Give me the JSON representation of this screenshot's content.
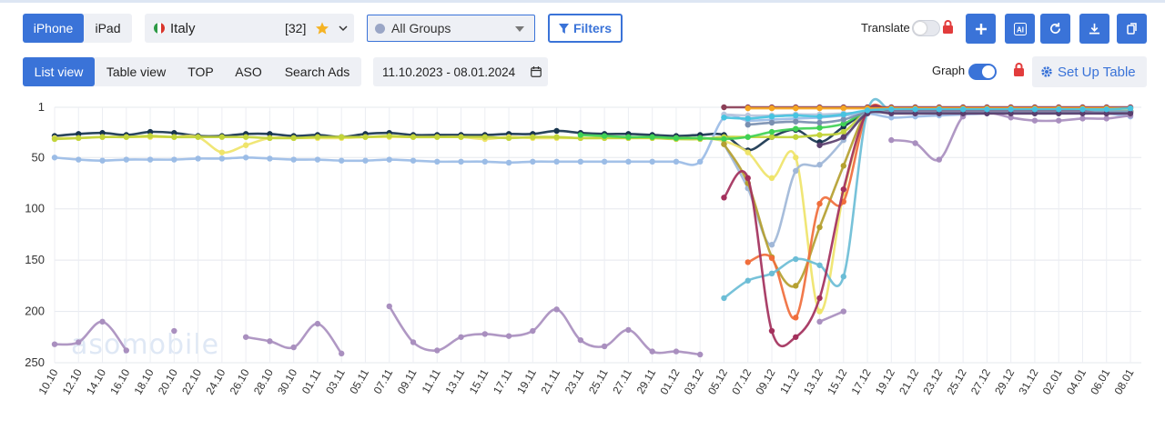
{
  "toolbar": {
    "device_tabs": [
      "iPhone",
      "iPad"
    ],
    "country": {
      "name": "Italy",
      "count": "[32]"
    },
    "groups": {
      "label": "All Groups"
    },
    "filters_label": "Filters",
    "translate_label": "Translate",
    "translate_on": false
  },
  "view_tabs": [
    "List view",
    "Table view",
    "TOP",
    "ASO",
    "Search Ads"
  ],
  "date_range": "11.10.2023 - 08.01.2024",
  "graph_label": "Graph",
  "graph_on": true,
  "setup_label": "Set Up Table",
  "watermark": "asomobile",
  "colors": {
    "accent": "#3a73d8",
    "lock": "#e23c3c",
    "star": "#f5b324"
  },
  "icons": [
    "plus-icon",
    "ai-icon",
    "refresh-icon",
    "download-icon",
    "copy-icon",
    "lock-icon",
    "gear-icon",
    "calendar-icon",
    "filter-icon",
    "star-icon",
    "chevron-down-icon"
  ],
  "chart_data": {
    "type": "line",
    "ylim": [
      1,
      250
    ],
    "y_inverted": true,
    "yticks": [
      1,
      50,
      100,
      150,
      200,
      250
    ],
    "x": [
      "10.10",
      "12.10",
      "14.10",
      "16.10",
      "18.10",
      "20.10",
      "22.10",
      "24.10",
      "26.10",
      "28.10",
      "30.10",
      "01.11",
      "03.11",
      "05.11",
      "07.11",
      "09.11",
      "11.11",
      "13.11",
      "15.11",
      "17.11",
      "19.11",
      "21.11",
      "23.11",
      "25.11",
      "27.11",
      "29.11",
      "01.12",
      "03.12",
      "05.12",
      "07.12",
      "09.12",
      "11.12",
      "13.12",
      "15.12",
      "17.12",
      "19.12",
      "21.12",
      "23.12",
      "25.12",
      "27.12",
      "29.12",
      "31.12",
      "02.01",
      "04.01",
      "06.01",
      "08.01"
    ],
    "series": [
      {
        "color": "#17344e",
        "values": [
          29,
          27,
          26,
          28,
          25,
          26,
          29,
          29,
          27,
          27,
          29,
          28,
          30,
          27,
          26,
          28,
          28,
          28,
          28,
          27,
          27,
          24,
          26,
          27,
          27,
          28,
          29,
          28,
          28,
          43,
          30,
          23,
          35,
          20,
          6,
          5,
          5,
          5,
          5,
          5,
          5,
          5,
          5,
          5,
          5,
          5
        ]
      },
      {
        "color": "#9bbce6",
        "values": [
          50,
          52,
          53,
          52,
          52,
          52,
          51,
          51,
          50,
          51,
          52,
          52,
          53,
          53,
          52,
          53,
          54,
          54,
          54,
          55,
          54,
          54,
          54,
          54,
          54,
          54,
          54,
          54,
          11,
          14,
          13,
          12,
          11,
          9,
          7,
          11,
          10,
          9,
          8,
          7,
          7,
          7,
          7,
          7,
          7,
          10
        ]
      },
      {
        "color": "#efe46a",
        "values": [
          31,
          31,
          30,
          30,
          30,
          30,
          30,
          45,
          38,
          31,
          31,
          31,
          31,
          30,
          30,
          30,
          30,
          30,
          32,
          30,
          31,
          31,
          31,
          31,
          31,
          31,
          31,
          31,
          34,
          45,
          70,
          50,
          200,
          85,
          5,
          5,
          4,
          4,
          4,
          4,
          4,
          4,
          4,
          4,
          4,
          4
        ]
      },
      {
        "color": "#c2d43a",
        "values": [
          32,
          31,
          30,
          30,
          29,
          30,
          30,
          30,
          30,
          31,
          31,
          30,
          30,
          30,
          29,
          30,
          30,
          30,
          30,
          31,
          30,
          30,
          31,
          31,
          31,
          31,
          32,
          32,
          30,
          30,
          30,
          30,
          28,
          25,
          5,
          5,
          5,
          5,
          5,
          5,
          5,
          5,
          5,
          5,
          5,
          5
        ]
      },
      {
        "color": "#3fd155",
        "values": [
          null,
          null,
          null,
          null,
          null,
          null,
          null,
          null,
          null,
          null,
          null,
          null,
          null,
          null,
          null,
          null,
          null,
          null,
          null,
          null,
          null,
          null,
          28,
          29,
          30,
          30,
          31,
          31,
          32,
          30,
          25,
          22,
          21,
          17,
          5,
          5,
          5,
          5,
          5,
          5,
          5,
          5,
          5,
          5,
          5,
          5
        ]
      },
      {
        "color": "#a98fbf",
        "values": [
          232,
          230,
          210,
          238,
          null,
          219,
          null,
          null,
          225,
          229,
          235,
          212,
          241,
          null,
          195,
          230,
          238,
          225,
          222,
          224,
          219,
          198,
          228,
          234,
          218,
          239,
          239,
          242,
          null,
          null,
          null,
          null,
          210,
          200,
          null,
          33,
          36,
          52,
          10,
          6,
          11,
          14,
          14,
          12,
          12,
          9
        ]
      },
      {
        "color": "#a0b7d8",
        "values": [
          null,
          null,
          null,
          null,
          null,
          null,
          null,
          null,
          null,
          null,
          null,
          null,
          null,
          null,
          null,
          null,
          null,
          null,
          null,
          null,
          null,
          null,
          null,
          null,
          null,
          null,
          null,
          null,
          37,
          80,
          135,
          63,
          57,
          33,
          5,
          5,
          5,
          5,
          5,
          5,
          5,
          5,
          5,
          5,
          5,
          5
        ]
      },
      {
        "color": "#b5a030",
        "values": [
          null,
          null,
          null,
          null,
          null,
          null,
          null,
          null,
          null,
          null,
          null,
          null,
          null,
          null,
          null,
          null,
          null,
          null,
          null,
          null,
          null,
          null,
          null,
          null,
          null,
          null,
          null,
          null,
          37,
          75,
          147,
          175,
          118,
          58,
          5,
          5,
          5,
          5,
          5,
          5,
          5,
          5,
          5,
          5,
          5,
          5
        ]
      },
      {
        "color": "#f06e3c",
        "values": [
          null,
          null,
          null,
          null,
          null,
          null,
          null,
          null,
          null,
          null,
          null,
          null,
          null,
          null,
          null,
          null,
          null,
          null,
          null,
          null,
          null,
          null,
          null,
          null,
          null,
          null,
          null,
          null,
          null,
          152,
          148,
          206,
          95,
          93,
          5,
          5,
          5,
          5,
          5,
          5,
          5,
          5,
          5,
          5,
          5,
          5
        ]
      },
      {
        "color": "#6bbdd6",
        "values": [
          null,
          null,
          null,
          null,
          null,
          null,
          null,
          null,
          null,
          null,
          null,
          null,
          null,
          null,
          null,
          null,
          null,
          null,
          null,
          null,
          null,
          null,
          null,
          null,
          null,
          null,
          null,
          null,
          187,
          170,
          163,
          149,
          155,
          166,
          5,
          5,
          5,
          5,
          5,
          5,
          5,
          5,
          5,
          5,
          5,
          5
        ]
      },
      {
        "color": "#a3305c",
        "values": [
          null,
          null,
          null,
          null,
          null,
          null,
          null,
          null,
          null,
          null,
          null,
          null,
          null,
          null,
          null,
          null,
          null,
          null,
          null,
          null,
          null,
          null,
          null,
          null,
          null,
          null,
          null,
          null,
          89,
          70,
          219,
          225,
          187,
          81,
          5,
          5,
          4,
          4,
          4,
          4,
          4,
          4,
          4,
          5,
          7,
          6
        ]
      },
      {
        "color": "#8b3f57",
        "values": [
          null,
          null,
          null,
          null,
          null,
          null,
          null,
          null,
          null,
          null,
          null,
          null,
          null,
          null,
          null,
          null,
          null,
          null,
          null,
          null,
          null,
          null,
          null,
          null,
          null,
          null,
          null,
          null,
          1,
          1,
          1,
          1,
          1,
          1,
          1,
          1,
          1,
          1,
          1,
          1,
          1,
          1,
          1,
          1,
          1,
          1
        ]
      },
      {
        "color": "#f5a623",
        "values": [
          null,
          null,
          null,
          null,
          null,
          null,
          null,
          null,
          null,
          null,
          null,
          null,
          null,
          null,
          null,
          null,
          null,
          null,
          null,
          null,
          null,
          null,
          null,
          null,
          null,
          null,
          null,
          null,
          null,
          2,
          2,
          2,
          2,
          2,
          2,
          2,
          2,
          2,
          2,
          2,
          2,
          2,
          2,
          2,
          2,
          2
        ]
      },
      {
        "color": "#b8c6de",
        "values": [
          null,
          null,
          null,
          null,
          null,
          null,
          null,
          null,
          null,
          null,
          null,
          null,
          null,
          null,
          null,
          null,
          null,
          null,
          null,
          null,
          null,
          null,
          null,
          null,
          null,
          null,
          null,
          null,
          8,
          9,
          9,
          8,
          8,
          7,
          6,
          6,
          6,
          6,
          6,
          6,
          6,
          6,
          6,
          6,
          6,
          6
        ]
      },
      {
        "color": "#7a8fb0",
        "values": [
          null,
          null,
          null,
          null,
          null,
          null,
          null,
          null,
          null,
          null,
          null,
          null,
          null,
          null,
          null,
          null,
          null,
          null,
          null,
          null,
          null,
          null,
          null,
          null,
          null,
          null,
          null,
          null,
          null,
          18,
          16,
          15,
          16,
          13,
          6,
          6,
          6,
          6,
          6,
          6,
          6,
          6,
          6,
          6,
          6,
          6
        ]
      },
      {
        "color": "#5a3f6e",
        "values": [
          null,
          null,
          null,
          null,
          null,
          null,
          null,
          null,
          null,
          null,
          null,
          null,
          null,
          null,
          null,
          null,
          null,
          null,
          null,
          null,
          null,
          null,
          null,
          null,
          null,
          null,
          null,
          null,
          null,
          null,
          null,
          null,
          38,
          30,
          7,
          7,
          7,
          7,
          7,
          7,
          7,
          7,
          7,
          7,
          7,
          7
        ]
      },
      {
        "color": "#46c3e0",
        "values": [
          null,
          null,
          null,
          null,
          null,
          null,
          null,
          null,
          null,
          null,
          null,
          null,
          null,
          null,
          null,
          null,
          null,
          null,
          null,
          null,
          null,
          null,
          null,
          null,
          null,
          null,
          null,
          null,
          11,
          12,
          10,
          9,
          10,
          8,
          4,
          3,
          3,
          3,
          3,
          3,
          3,
          3,
          3,
          3,
          3,
          2
        ]
      }
    ]
  }
}
